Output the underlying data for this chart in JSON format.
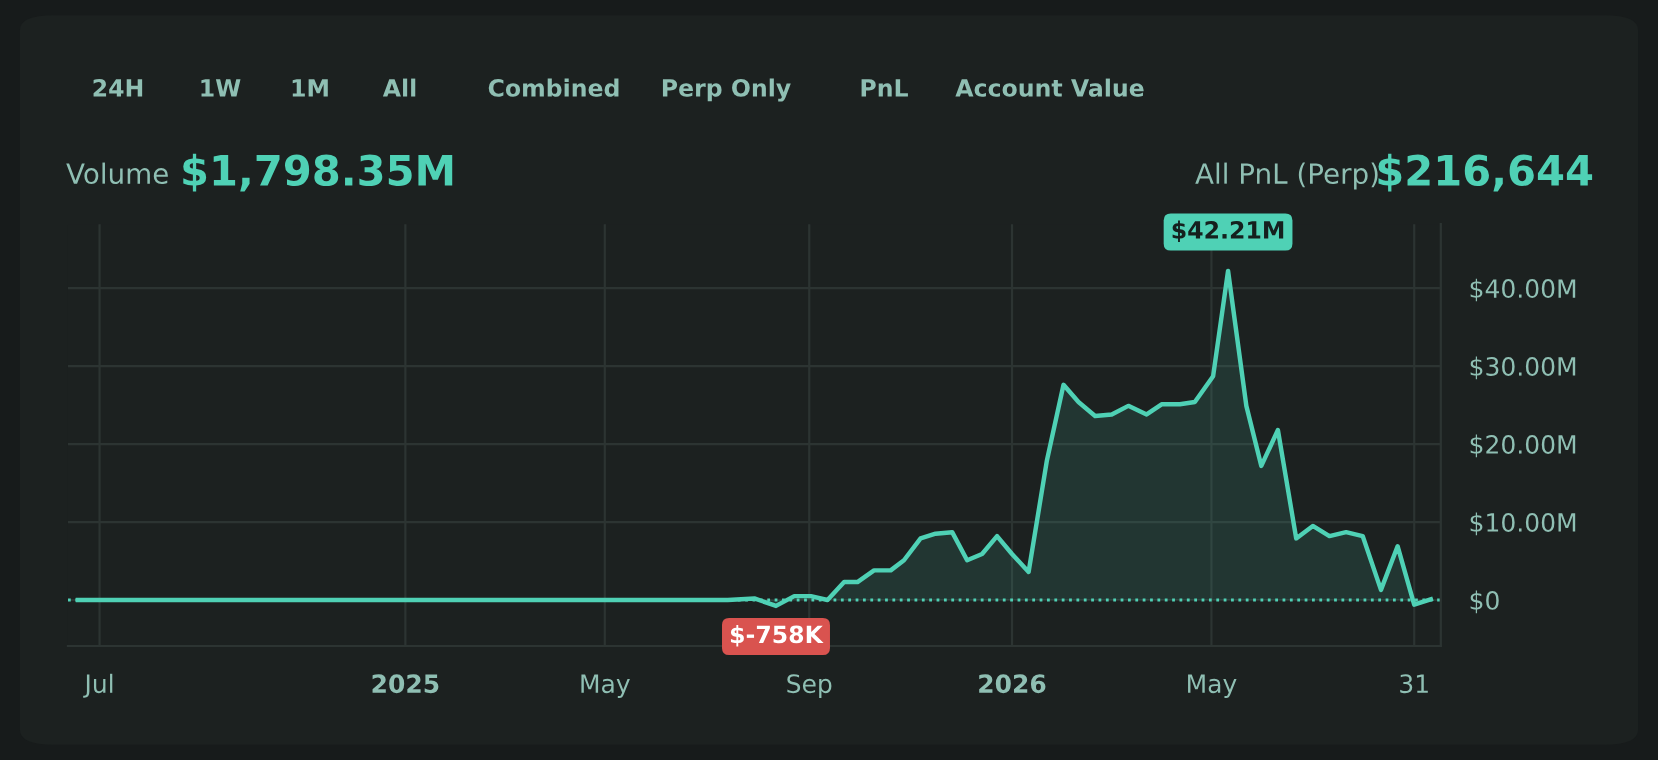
{
  "chart_data": {
    "type": "area",
    "grid": true,
    "x": [
      "2024-06-18",
      "2025-07-14",
      "2025-07-30",
      "2025-08-12",
      "2025-08-23",
      "2025-09-02",
      "2025-09-12",
      "2025-09-22",
      "2025-09-30",
      "2025-10-10",
      "2025-10-20",
      "2025-10-28",
      "2025-11-07",
      "2025-11-16",
      "2025-11-26",
      "2025-12-05",
      "2025-12-14",
      "2025-12-23",
      "2026-01-01",
      "2026-01-11",
      "2026-01-22",
      "2026-02-01",
      "2026-02-10",
      "2026-02-20",
      "2026-03-02",
      "2026-03-12",
      "2026-03-23",
      "2026-04-01",
      "2026-04-12",
      "2026-04-21",
      "2026-05-02",
      "2026-05-11",
      "2026-05-22",
      "2026-05-31",
      "2026-06-10",
      "2026-06-21",
      "2026-07-01",
      "2026-07-11",
      "2026-07-21",
      "2026-07-31",
      "2026-08-11",
      "2026-08-21",
      "2026-08-31",
      "2026-09-10"
    ],
    "series": [
      {
        "color": "#4fd1b5",
        "values": [
          0,
          0,
          0.2,
          -0.758,
          0.5,
          0.5,
          0,
          2.3,
          2.3,
          3.8,
          3.8,
          5.1,
          7.9,
          8.5,
          8.7,
          5.1,
          5.9,
          8.2,
          5.9,
          3.6,
          17.9,
          27.6,
          25.4,
          23.6,
          23.8,
          24.9,
          23.8,
          25.1,
          25.1,
          25.4,
          28.7,
          42.21,
          24.9,
          17.2,
          21.8,
          7.9,
          9.5,
          8.2,
          8.7,
          8.2,
          1.3,
          6.9,
          -0.6,
          0.1
        ]
      }
    ],
    "xlim": [
      "2024-06-12",
      "2026-09-16"
    ],
    "xticks": [
      {
        "value": "2024-07-01",
        "label": "Jul"
      },
      {
        "value": "2025-01-01",
        "label": "2025"
      },
      {
        "value": "2025-05-01",
        "label": "May"
      },
      {
        "value": "2025-09-01",
        "label": "Sep"
      },
      {
        "value": "2026-01-01",
        "label": "2026"
      },
      {
        "value": "2026-05-01",
        "label": "May"
      },
      {
        "value": "2026-08-31",
        "label": "31"
      }
    ],
    "ylim": [
      -5.9,
      48.2
    ],
    "yticks": [
      {
        "value": 0,
        "label": "$0"
      },
      {
        "value": 10,
        "label": "$10.00M"
      },
      {
        "value": 20,
        "label": "$20.00M"
      },
      {
        "value": 30,
        "label": "$30.00M"
      },
      {
        "value": 40,
        "label": "$40.00M"
      }
    ],
    "ref_lines": [
      {
        "axis": "y",
        "value": 0,
        "line_style": "dotted",
        "color": "#4fd1b5"
      }
    ],
    "annotations": [
      "24H",
      "1W",
      "1M",
      "All",
      "Combined",
      "Perp Only",
      "PnL",
      "Account Value",
      "Volume",
      "$1,798.35M",
      "All PnL (Perp)",
      "$216,644",
      {
        "text": "$42.21M",
        "x": "2026-05-11",
        "y": 42.21
      },
      {
        "text": "$-758K",
        "x": "2025-08-12",
        "y": -0.758
      }
    ]
  }
}
